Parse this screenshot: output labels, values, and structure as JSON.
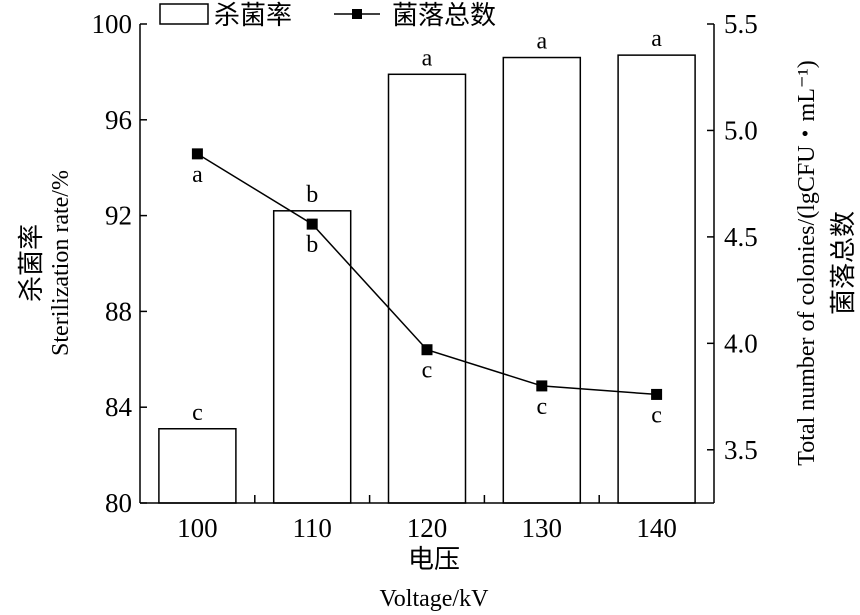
{
  "chart_data": {
    "type": "bar",
    "categories": [
      "100",
      "110",
      "120",
      "130",
      "140"
    ],
    "series": [
      {
        "name": "杀菌率",
        "type": "bar",
        "axis": "left",
        "values": [
          83.1,
          92.2,
          97.9,
          98.6,
          98.7
        ],
        "significance": [
          "c",
          "b",
          "a",
          "a",
          "a"
        ]
      },
      {
        "name": "菌落总数",
        "type": "line",
        "axis": "right",
        "marker": "square",
        "values": [
          4.89,
          4.56,
          3.97,
          3.8,
          3.76
        ],
        "significance": [
          "a",
          "b",
          "c",
          "c",
          "c"
        ]
      }
    ],
    "xlabel": {
      "cn": "电压",
      "en": "Voltage/kV"
    },
    "ylabel_left": {
      "cn": "杀菌率",
      "en": "Sterilization rate/%"
    },
    "ylabel_right": {
      "cn": "菌落总数",
      "en": "Total number of colonies/(lgCFU・mL⁻¹)"
    },
    "ylim_left": [
      80,
      100
    ],
    "yticks_left": [
      "80",
      "84",
      "88",
      "92",
      "96",
      "100"
    ],
    "ylim_right": [
      3.25,
      5.5
    ],
    "yticks_right": [
      "3.5",
      "4.0",
      "4.5",
      "5.0",
      "5.5"
    ],
    "grid": false,
    "legend": {
      "position": "top-left"
    },
    "colors": {
      "bar_fill": "#ffffff",
      "stroke": "#000000"
    }
  }
}
